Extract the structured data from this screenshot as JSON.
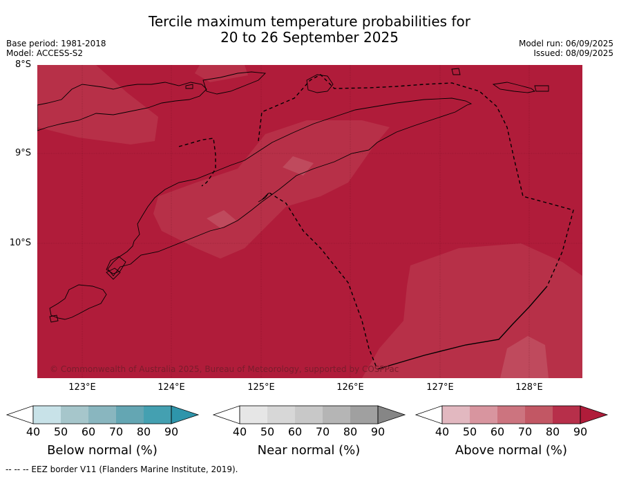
{
  "title": {
    "line1": "Tercile maximum temperature probabilities for",
    "line2": "20 to 26 September 2025"
  },
  "meta": {
    "base_period": "Base period: 1981-2018",
    "model": "Model: ACCESS-S2",
    "model_run": "Model run: 06/09/2025",
    "issued": "Issued: 08/09/2025"
  },
  "map": {
    "lat_labels": [
      "8°S",
      "9°S",
      "10°S"
    ],
    "lon_labels": [
      "123°E",
      "124°E",
      "125°E",
      "126°E",
      "127°E",
      "128°E"
    ],
    "copyright": "© Commonwealth of Australia 2025, Bureau of Meteorology, supported by COSPPac",
    "colors": {
      "above_80_90": "#b72f4a",
      "above_90": "#b01c3a",
      "light_patch": "#c04a5c",
      "coast": "#000000"
    }
  },
  "legends": [
    {
      "title": "Below normal (%)",
      "ticks": [
        "40",
        "50",
        "60",
        "70",
        "80",
        "90"
      ],
      "colors": [
        "#ffffff",
        "#c8e2e8",
        "#a6c6cb",
        "#89b6bf",
        "#64a6b3",
        "#44a0b1",
        "#2e95ab"
      ]
    },
    {
      "title": "Near normal (%)",
      "ticks": [
        "40",
        "50",
        "60",
        "70",
        "80",
        "90"
      ],
      "colors": [
        "#ffffff",
        "#e6e6e6",
        "#d7d7d7",
        "#c8c8c8",
        "#b5b5b5",
        "#a0a0a0",
        "#868686"
      ]
    },
    {
      "title": "Above normal (%)",
      "ticks": [
        "40",
        "50",
        "60",
        "70",
        "80",
        "90"
      ],
      "colors": [
        "#ffffff",
        "#e2b8c0",
        "#d8959f",
        "#cc747f",
        "#c25764",
        "#b72f4a",
        "#b01c3a"
      ]
    }
  ],
  "footer": "-- --  -- EEZ border V11 (Flanders Marine Institute, 2019)."
}
